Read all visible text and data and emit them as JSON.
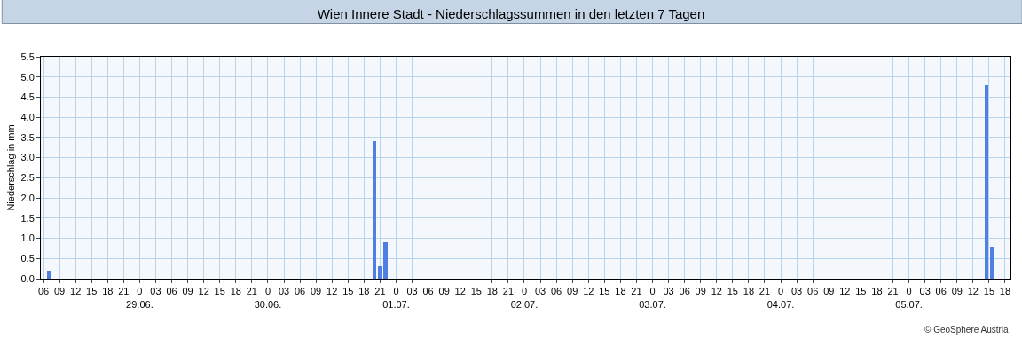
{
  "chart_data": {
    "type": "bar",
    "title": "Wien Innere Stadt - Niederschlagssummen in den letzten 7 Tagen",
    "ylabel": "Niederschlag in mm",
    "x": [
      "--06-28T07:00",
      "--06-30T20:00",
      "--06-30T21:00",
      "--06-30T22:00",
      "--07-05T14:30",
      "--07-05T15:30"
    ],
    "series": [
      {
        "color": "#4f7fe0",
        "values": [
          0.2,
          3.4,
          0.3,
          0.9,
          4.8,
          0.8
        ]
      }
    ],
    "xlim": [
      "--06-28T05:30",
      "--07-05T19:00"
    ],
    "ylim": [
      0,
      5.5
    ],
    "yticks": [
      {
        "value": 0,
        "label": "0.0"
      },
      0.5,
      {
        "value": 1,
        "label": "1.0"
      },
      1.5,
      {
        "value": 2,
        "label": "2.0"
      },
      2.5,
      {
        "value": 3,
        "label": "3.0"
      },
      3.5,
      {
        "value": 4,
        "label": "4.0"
      },
      4.5,
      {
        "value": 5,
        "label": "5.0"
      },
      5.5
    ],
    "xticks": [
      {
        "value": "--06-28T06:00",
        "label": "06"
      },
      {
        "value": "--06-28T09:00",
        "label": "09"
      },
      {
        "value": "--06-28T12:00",
        "label": "12"
      },
      {
        "value": "--06-28T15:00",
        "label": "15"
      },
      {
        "value": "--06-28T18:00",
        "label": "18"
      },
      {
        "value": "--06-28T21:00",
        "label": "21"
      },
      {
        "value": "--06-29T00:00",
        "label": "0\n29.06."
      },
      {
        "value": "--06-29T03:00",
        "label": "03"
      },
      {
        "value": "--06-29T06:00",
        "label": "06"
      },
      {
        "value": "--06-29T09:00",
        "label": "09"
      },
      {
        "value": "--06-29T12:00",
        "label": "12"
      },
      {
        "value": "--06-29T15:00",
        "label": "15"
      },
      {
        "value": "--06-29T18:00",
        "label": "18"
      },
      {
        "value": "--06-29T21:00",
        "label": "21"
      },
      {
        "value": "--06-30T00:00",
        "label": "0\n30.06."
      },
      {
        "value": "--06-30T03:00",
        "label": "03"
      },
      {
        "value": "--06-30T06:00",
        "label": "06"
      },
      {
        "value": "--06-30T09:00",
        "label": "09"
      },
      {
        "value": "--06-30T12:00",
        "label": "12"
      },
      {
        "value": "--06-30T15:00",
        "label": "15"
      },
      {
        "value": "--06-30T18:00",
        "label": "18"
      },
      {
        "value": "--06-30T21:00",
        "label": "21"
      },
      {
        "value": "--07-01T00:00",
        "label": "0\n01.07."
      },
      {
        "value": "--07-01T03:00",
        "label": "03"
      },
      {
        "value": "--07-01T06:00",
        "label": "06"
      },
      {
        "value": "--07-01T09:00",
        "label": "09"
      },
      {
        "value": "--07-01T12:00",
        "label": "12"
      },
      {
        "value": "--07-01T15:00",
        "label": "15"
      },
      {
        "value": "--07-01T18:00",
        "label": "18"
      },
      {
        "value": "--07-01T21:00",
        "label": "21"
      },
      {
        "value": "--07-02T00:00",
        "label": "0\n02.07."
      },
      {
        "value": "--07-02T03:00",
        "label": "03"
      },
      {
        "value": "--07-02T06:00",
        "label": "06"
      },
      {
        "value": "--07-02T09:00",
        "label": "09"
      },
      {
        "value": "--07-02T12:00",
        "label": "12"
      },
      {
        "value": "--07-02T15:00",
        "label": "15"
      },
      {
        "value": "--07-02T18:00",
        "label": "18"
      },
      {
        "value": "--07-02T21:00",
        "label": "21"
      },
      {
        "value": "--07-03T00:00",
        "label": "0\n03.07."
      },
      {
        "value": "--07-03T03:00",
        "label": "03"
      },
      {
        "value": "--07-03T06:00",
        "label": "06"
      },
      {
        "value": "--07-03T09:00",
        "label": "09"
      },
      {
        "value": "--07-03T12:00",
        "label": "12"
      },
      {
        "value": "--07-03T15:00",
        "label": "15"
      },
      {
        "value": "--07-03T18:00",
        "label": "18"
      },
      {
        "value": "--07-03T21:00",
        "label": "21"
      },
      {
        "value": "--07-04T00:00",
        "label": "0\n04.07."
      },
      {
        "value": "--07-04T03:00",
        "label": "03"
      },
      {
        "value": "--07-04T06:00",
        "label": "06"
      },
      {
        "value": "--07-04T09:00",
        "label": "09"
      },
      {
        "value": "--07-04T12:00",
        "label": "12"
      },
      {
        "value": "--07-04T15:00",
        "label": "15"
      },
      {
        "value": "--07-04T18:00",
        "label": "18"
      },
      {
        "value": "--07-04T21:00",
        "label": "21"
      },
      {
        "value": "--07-05T00:00",
        "label": "0\n05.07."
      },
      {
        "value": "--07-05T03:00",
        "label": "03"
      },
      {
        "value": "--07-05T06:00",
        "label": "06"
      },
      {
        "value": "--07-05T09:00",
        "label": "09"
      },
      {
        "value": "--07-05T12:00",
        "label": "12"
      },
      {
        "value": "--07-05T15:00",
        "label": "15"
      },
      {
        "value": "--07-05T18:00",
        "label": "18"
      }
    ],
    "grid": true,
    "annotations": [
      "© GeoSphere Austria"
    ]
  }
}
